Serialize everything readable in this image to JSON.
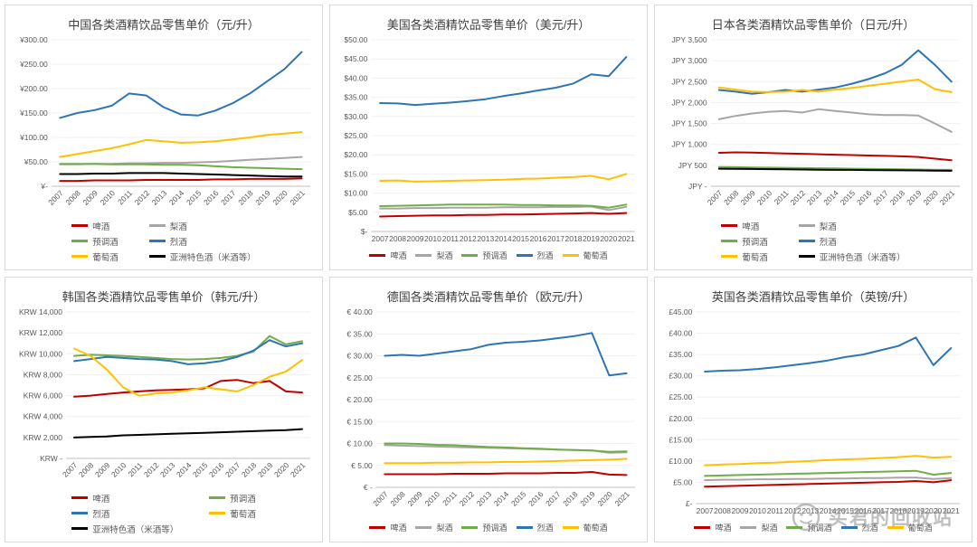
{
  "watermark": {
    "text": "买君的回收站"
  },
  "chart_data": [
    {
      "id": "china",
      "type": "line",
      "title": "中国各类酒精饮品零售单价（元/升）",
      "ylim": [
        0,
        300
      ],
      "legend_columns": 2,
      "x_rotated": true,
      "categories": [
        "2007",
        "2008",
        "2009",
        "2010",
        "2011",
        "2012",
        "2013",
        "2014",
        "2015",
        "2016",
        "2017",
        "2018",
        "2019",
        "2020",
        "2021"
      ],
      "y_ticks": [
        {
          "v": 300,
          "label": "¥300.00"
        },
        {
          "v": 250,
          "label": "¥250.00"
        },
        {
          "v": 200,
          "label": "¥200.00"
        },
        {
          "v": 150,
          "label": "¥150.00"
        },
        {
          "v": 100,
          "label": "¥100.00"
        },
        {
          "v": 50,
          "label": "¥50.00"
        },
        {
          "v": 0,
          "label": "¥-"
        }
      ],
      "series": [
        {
          "key": "beer",
          "name": "啤酒",
          "color": "#C00000",
          "values": [
            11,
            11,
            12,
            12,
            12,
            13,
            13,
            13,
            13,
            14,
            14,
            15,
            15,
            15,
            16
          ]
        },
        {
          "key": "pear-wine",
          "name": "梨酒",
          "color": "#A6A6A6",
          "values": [
            45,
            45,
            46,
            46,
            47,
            47,
            48,
            48,
            49,
            50,
            52,
            54,
            56,
            58,
            60
          ]
        },
        {
          "key": "premixed",
          "name": "预调酒",
          "color": "#70AD47",
          "values": [
            46,
            46,
            46,
            45,
            45,
            45,
            44,
            44,
            43,
            41,
            39,
            38,
            37,
            36,
            35
          ]
        },
        {
          "key": "spirits",
          "name": "烈酒",
          "color": "#2E75B6",
          "values": [
            140,
            150,
            156,
            165,
            190,
            186,
            162,
            147,
            145,
            155,
            170,
            190,
            215,
            240,
            275
          ]
        },
        {
          "key": "wine",
          "name": "葡萄酒",
          "color": "#FFC000",
          "values": [
            60,
            66,
            72,
            78,
            86,
            95,
            92,
            89,
            90,
            92,
            96,
            100,
            105,
            108,
            111
          ]
        },
        {
          "key": "asian-specialty",
          "name": "亚洲特色酒（米酒等）",
          "color": "#000000",
          "values": [
            25,
            25,
            26,
            26,
            27,
            27,
            27,
            26,
            25,
            24,
            23,
            22,
            21,
            20,
            20
          ]
        }
      ]
    },
    {
      "id": "usa",
      "type": "line",
      "title": "美国各类酒精饮品零售单价（美元/升）",
      "ylim": [
        0,
        50
      ],
      "legend_columns": 5,
      "x_rotated": false,
      "categories": [
        "2007",
        "2008",
        "2009",
        "2010",
        "2011",
        "2012",
        "2013",
        "2014",
        "2015",
        "2016",
        "2017",
        "2018",
        "2019",
        "2020",
        "2021"
      ],
      "y_ticks": [
        {
          "v": 50,
          "label": "$50.00"
        },
        {
          "v": 45,
          "label": "$45.00"
        },
        {
          "v": 40,
          "label": "$40.00"
        },
        {
          "v": 35,
          "label": "$35.00"
        },
        {
          "v": 30,
          "label": "$30.00"
        },
        {
          "v": 25,
          "label": "$25.00"
        },
        {
          "v": 20,
          "label": "$20.00"
        },
        {
          "v": 15,
          "label": "$15.00"
        },
        {
          "v": 10,
          "label": "$10.00"
        },
        {
          "v": 5,
          "label": "$5.00"
        },
        {
          "v": 0,
          "label": "$-"
        }
      ],
      "series": [
        {
          "key": "beer",
          "name": "啤酒",
          "color": "#C00000",
          "values": [
            3.9,
            4.0,
            4.1,
            4.2,
            4.2,
            4.3,
            4.3,
            4.4,
            4.4,
            4.5,
            4.6,
            4.7,
            4.8,
            4.6,
            4.8
          ]
        },
        {
          "key": "pear-wine",
          "name": "梨酒",
          "color": "#A6A6A6",
          "values": [
            6.0,
            6.0,
            6.1,
            6.1,
            6.2,
            6.2,
            6.2,
            6.3,
            6.3,
            6.3,
            6.4,
            6.4,
            6.5,
            5.6,
            6.4
          ]
        },
        {
          "key": "premixed",
          "name": "预调酒",
          "color": "#70AD47",
          "values": [
            6.6,
            6.7,
            6.8,
            6.9,
            7.0,
            7.0,
            7.0,
            7.0,
            6.9,
            6.9,
            6.8,
            6.8,
            6.7,
            6.2,
            7.0
          ]
        },
        {
          "key": "spirits",
          "name": "烈酒",
          "color": "#2E75B6",
          "values": [
            33.5,
            33.4,
            33.0,
            33.3,
            33.6,
            34.0,
            34.5,
            35.3,
            36.0,
            36.8,
            37.5,
            38.6,
            41.0,
            40.5,
            45.5
          ]
        },
        {
          "key": "wine",
          "name": "葡萄酒",
          "color": "#FFC000",
          "values": [
            13.2,
            13.3,
            13.0,
            13.1,
            13.2,
            13.3,
            13.4,
            13.5,
            13.7,
            13.8,
            14.0,
            14.2,
            14.5,
            13.6,
            15.0
          ]
        }
      ]
    },
    {
      "id": "japan",
      "type": "line",
      "title": "日本各类酒精饮品零售单价（日元/升）",
      "ylim": [
        0,
        3500
      ],
      "legend_columns": 2,
      "x_rotated": true,
      "categories": [
        "2007",
        "2008",
        "2009",
        "2010",
        "2011",
        "2012",
        "2013",
        "2014",
        "2015",
        "2016",
        "2017",
        "2018",
        "2019",
        "2020",
        "2021"
      ],
      "y_ticks": [
        {
          "v": 3500,
          "label": "JPY 3,500"
        },
        {
          "v": 3000,
          "label": "JPY 3,000"
        },
        {
          "v": 2500,
          "label": "JPY 2,500"
        },
        {
          "v": 2000,
          "label": "JPY 2,000"
        },
        {
          "v": 1500,
          "label": "JPY 1,500"
        },
        {
          "v": 1000,
          "label": "JPY 1,000"
        },
        {
          "v": 500,
          "label": "JPY 500"
        },
        {
          "v": 0,
          "label": "JPY -"
        }
      ],
      "series": [
        {
          "key": "beer",
          "name": "啤酒",
          "color": "#C00000",
          "values": [
            800,
            810,
            805,
            795,
            785,
            775,
            765,
            755,
            745,
            735,
            725,
            715,
            700,
            660,
            620
          ]
        },
        {
          "key": "pear-wine",
          "name": "梨酒",
          "color": "#A6A6A6",
          "values": [
            1600,
            1680,
            1740,
            1780,
            1800,
            1760,
            1840,
            1800,
            1760,
            1720,
            1700,
            1700,
            1690,
            1500,
            1300
          ]
        },
        {
          "key": "premixed",
          "name": "预调酒",
          "color": "#70AD47",
          "values": [
            460,
            455,
            450,
            445,
            440,
            435,
            430,
            425,
            420,
            415,
            410,
            405,
            400,
            395,
            390
          ]
        },
        {
          "key": "spirits",
          "name": "烈酒",
          "color": "#2E75B6",
          "values": [
            2300,
            2260,
            2210,
            2250,
            2300,
            2260,
            2310,
            2360,
            2450,
            2560,
            2700,
            2900,
            3250,
            2900,
            2500
          ]
        },
        {
          "key": "wine",
          "name": "葡萄酒",
          "color": "#FFC000",
          "values": [
            2360,
            2310,
            2260,
            2250,
            2260,
            2300,
            2260,
            2310,
            2350,
            2400,
            2450,
            2500,
            2550,
            2320,
            2250
          ]
        },
        {
          "key": "asian-specialty",
          "name": "亚洲特色酒（米酒等）",
          "color": "#000000",
          "values": [
            420,
            418,
            412,
            408,
            404,
            400,
            396,
            392,
            390,
            386,
            384,
            380,
            378,
            374,
            370
          ]
        }
      ]
    },
    {
      "id": "korea",
      "type": "line",
      "title": "韩国各类酒精饮品零售单价（韩元/升）",
      "ylim": [
        0,
        14000
      ],
      "legend_columns": 2,
      "x_rotated": true,
      "categories": [
        "2007",
        "2008",
        "2009",
        "2010",
        "2011",
        "2012",
        "2013",
        "2014",
        "2015",
        "2016",
        "2017",
        "2018",
        "2019",
        "2020",
        "2021"
      ],
      "y_ticks": [
        {
          "v": 14000,
          "label": "KRW 14,000"
        },
        {
          "v": 12000,
          "label": "KRW 12,000"
        },
        {
          "v": 10000,
          "label": "KRW 10,000"
        },
        {
          "v": 8000,
          "label": "KRW 8,000"
        },
        {
          "v": 6000,
          "label": "KRW 6,000"
        },
        {
          "v": 4000,
          "label": "KRW 4,000"
        },
        {
          "v": 2000,
          "label": "KRW 2,000"
        },
        {
          "v": 0,
          "label": "KRW -"
        }
      ],
      "series": [
        {
          "key": "beer",
          "name": "啤酒",
          "color": "#C00000",
          "values": [
            5900,
            6000,
            6150,
            6300,
            6400,
            6500,
            6550,
            6600,
            6700,
            7400,
            7500,
            7200,
            7400,
            6400,
            6300
          ]
        },
        {
          "key": "premixed",
          "name": "预调酒",
          "color": "#70AD47",
          "values": [
            9800,
            9900,
            9850,
            9800,
            9700,
            9600,
            9500,
            9450,
            9500,
            9600,
            9800,
            10200,
            11700,
            10900,
            11200
          ]
        },
        {
          "key": "spirits",
          "name": "烈酒",
          "color": "#2E75B6",
          "values": [
            9300,
            9500,
            9700,
            9600,
            9500,
            9450,
            9300,
            9000,
            9100,
            9300,
            9700,
            10300,
            11300,
            10700,
            11000
          ]
        },
        {
          "key": "wine",
          "name": "葡萄酒",
          "color": "#FFC000",
          "values": [
            10500,
            9800,
            8500,
            6800,
            6000,
            6200,
            6300,
            6500,
            6800,
            6600,
            6400,
            7000,
            7800,
            8300,
            9400
          ]
        },
        {
          "key": "asian-specialty",
          "name": "亚洲特色酒（米酒等）",
          "color": "#000000",
          "values": [
            2000,
            2050,
            2100,
            2200,
            2250,
            2300,
            2350,
            2400,
            2450,
            2500,
            2550,
            2600,
            2650,
            2700,
            2800
          ]
        }
      ]
    },
    {
      "id": "germany",
      "type": "line",
      "title": "德国各类酒精饮品零售单价（欧元/升）",
      "ylim": [
        0,
        40
      ],
      "legend_columns": 5,
      "x_rotated": true,
      "categories": [
        "2007",
        "2008",
        "2009",
        "2010",
        "2011",
        "2012",
        "2013",
        "2014",
        "2015",
        "2016",
        "2017",
        "2018",
        "2019",
        "2020",
        "2021"
      ],
      "y_ticks": [
        {
          "v": 40,
          "label": "€ 40.00"
        },
        {
          "v": 35,
          "label": "€ 35.00"
        },
        {
          "v": 30,
          "label": "€ 30.00"
        },
        {
          "v": 25,
          "label": "€ 25.00"
        },
        {
          "v": 20,
          "label": "€ 20.00"
        },
        {
          "v": 15,
          "label": "€ 15.00"
        },
        {
          "v": 10,
          "label": "€ 10.00"
        },
        {
          "v": 5,
          "label": "€ 5.00"
        },
        {
          "v": 0,
          "label": "€ -"
        }
      ],
      "series": [
        {
          "key": "beer",
          "name": "啤酒",
          "color": "#C00000",
          "values": [
            3.0,
            3.0,
            3.0,
            3.0,
            3.1,
            3.1,
            3.1,
            3.2,
            3.2,
            3.2,
            3.3,
            3.3,
            3.5,
            2.9,
            2.8
          ]
        },
        {
          "key": "pear-wine",
          "name": "梨酒",
          "color": "#A6A6A6",
          "values": [
            9.6,
            9.5,
            9.4,
            9.3,
            9.2,
            9.1,
            9.0,
            8.9,
            8.8,
            8.7,
            8.6,
            8.5,
            8.4,
            7.9,
            8.0
          ]
        },
        {
          "key": "premixed",
          "name": "预调酒",
          "color": "#70AD47",
          "values": [
            10.0,
            10.0,
            9.9,
            9.7,
            9.6,
            9.4,
            9.2,
            9.1,
            8.9,
            8.8,
            8.6,
            8.5,
            8.4,
            8.1,
            8.2
          ]
        },
        {
          "key": "spirits",
          "name": "烈酒",
          "color": "#2E75B6",
          "values": [
            30.0,
            30.2,
            30.0,
            30.5,
            31.0,
            31.5,
            32.5,
            33.0,
            33.2,
            33.5,
            34.0,
            34.5,
            35.2,
            25.5,
            26.0
          ]
        },
        {
          "key": "wine",
          "name": "葡萄酒",
          "color": "#FFC000",
          "values": [
            5.5,
            5.5,
            5.5,
            5.6,
            5.6,
            5.7,
            5.7,
            5.8,
            5.8,
            5.9,
            6.0,
            6.1,
            6.2,
            6.3,
            6.5
          ]
        }
      ]
    },
    {
      "id": "uk",
      "type": "line",
      "title": "英国各类酒精饮品零售单价（英镑/升）",
      "ylim": [
        0,
        45
      ],
      "legend_columns": 5,
      "x_rotated": false,
      "categories": [
        "2007",
        "2008",
        "2009",
        "2010",
        "2011",
        "2012",
        "2013",
        "2014",
        "2015",
        "2016",
        "2017",
        "2018",
        "2019",
        "2020",
        "2021"
      ],
      "y_ticks": [
        {
          "v": 45,
          "label": "£45.00"
        },
        {
          "v": 40,
          "label": "£40.00"
        },
        {
          "v": 35,
          "label": "£35.00"
        },
        {
          "v": 30,
          "label": "£30.00"
        },
        {
          "v": 25,
          "label": "£25.00"
        },
        {
          "v": 20,
          "label": "£20.00"
        },
        {
          "v": 15,
          "label": "£15.00"
        },
        {
          "v": 10,
          "label": "£10.00"
        },
        {
          "v": 5,
          "label": "£5.00"
        },
        {
          "v": 0,
          "label": "£-"
        }
      ],
      "series": [
        {
          "key": "beer",
          "name": "啤酒",
          "color": "#C00000",
          "values": [
            4.0,
            4.1,
            4.2,
            4.3,
            4.4,
            4.5,
            4.6,
            4.7,
            4.8,
            4.9,
            5.0,
            5.1,
            5.3,
            5.0,
            5.5
          ]
        },
        {
          "key": "pear-wine",
          "name": "梨酒",
          "color": "#A6A6A6",
          "values": [
            5.5,
            5.6,
            5.6,
            5.7,
            5.7,
            5.8,
            5.8,
            5.9,
            5.9,
            6.0,
            6.0,
            6.1,
            6.1,
            5.8,
            6.0
          ]
        },
        {
          "key": "premixed",
          "name": "预调酒",
          "color": "#70AD47",
          "values": [
            6.5,
            6.6,
            6.7,
            6.8,
            6.9,
            7.0,
            7.1,
            7.2,
            7.3,
            7.4,
            7.5,
            7.6,
            7.7,
            6.8,
            7.2
          ]
        },
        {
          "key": "spirits",
          "name": "烈酒",
          "color": "#2E75B6",
          "values": [
            31.0,
            31.2,
            31.3,
            31.6,
            32.0,
            32.5,
            33.0,
            33.6,
            34.4,
            35.0,
            36.0,
            37.0,
            39.0,
            32.5,
            36.5
          ]
        },
        {
          "key": "wine",
          "name": "葡萄酒",
          "color": "#FFC000",
          "values": [
            9.0,
            9.2,
            9.3,
            9.5,
            9.6,
            9.8,
            10.0,
            10.2,
            10.4,
            10.5,
            10.7,
            10.9,
            11.2,
            10.8,
            11.0
          ]
        }
      ]
    }
  ]
}
